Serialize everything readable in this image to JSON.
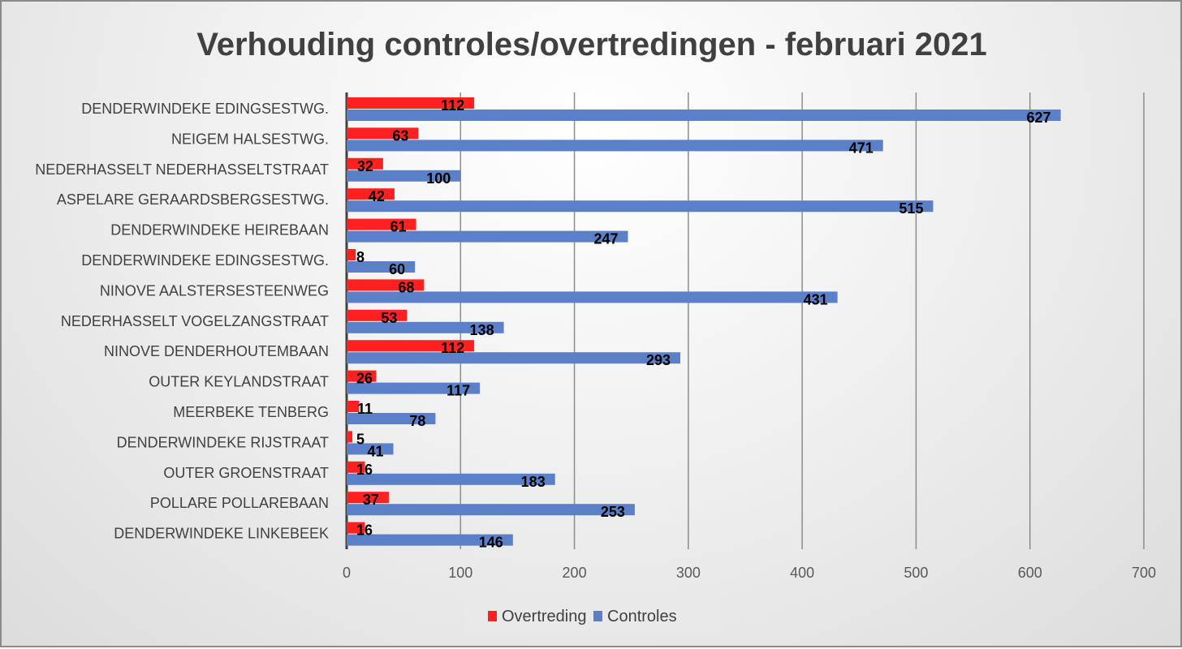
{
  "chart_data": {
    "type": "bar",
    "orientation": "horizontal",
    "title": "Verhouding controles/overtredingen - februari 2021",
    "xlabel": "",
    "ylabel": "",
    "xlim": [
      0,
      700
    ],
    "xticks": [
      "0",
      "100",
      "200",
      "300",
      "400",
      "500",
      "600",
      "700"
    ],
    "grid": true,
    "legend_position": "bottom",
    "categories": [
      "DENDERWINDEKE EDINGSESTWG.",
      "NEIGEM HALSESTWG.",
      "NEDERHASSELT NEDERHASSELTSTRAAT",
      "ASPELARE GERAARDSBERGSESTWG.",
      "DENDERWINDEKE HEIREBAAN",
      "DENDERWINDEKE EDINGSESTWG.",
      "NINOVE AALSTERSESTEENWEG",
      "NEDERHASSELT VOGELZANGSTRAAT",
      "NINOVE DENDERHOUTEMBAAN",
      "OUTER KEYLANDSTRAAT",
      "MEERBEKE TENBERG",
      "DENDERWINDEKE RIJSTRAAT",
      "OUTER GROENSTRAAT",
      "POLLARE POLLAREBAAN",
      "DENDERWINDEKE LINKEBEEK"
    ],
    "series": [
      {
        "name": "Overtreding",
        "color": "#ff2020",
        "values": [
          112,
          63,
          32,
          42,
          61,
          8,
          68,
          53,
          112,
          26,
          11,
          5,
          16,
          37,
          16
        ]
      },
      {
        "name": "Controles",
        "color": "#5b80c8",
        "values": [
          627,
          471,
          100,
          515,
          247,
          60,
          431,
          138,
          293,
          117,
          78,
          41,
          183,
          253,
          146
        ]
      }
    ]
  }
}
